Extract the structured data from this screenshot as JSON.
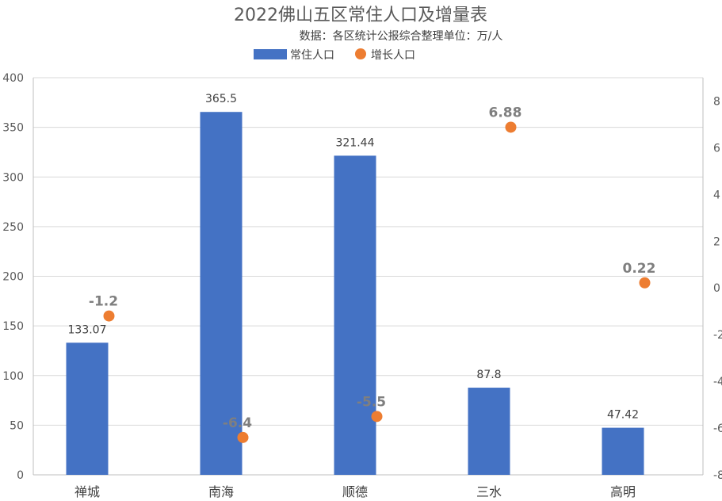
{
  "chart_data": {
    "type": "bar",
    "title": "2022佛山五区常住人口及增量表",
    "subtitle": "数据：各区统计公报综合整理单位：万/人",
    "categories": [
      "禅城",
      "南海",
      "顺德",
      "三水",
      "高明"
    ],
    "series": [
      {
        "name": "常住人口",
        "type": "bar",
        "axis": "left",
        "color": "#4472c4",
        "values": [
          133.07,
          365.5,
          321.44,
          87.8,
          47.42
        ],
        "labels": [
          "133.07",
          "365.5",
          "321.44",
          "87.8",
          "47.42"
        ]
      },
      {
        "name": "增长人口",
        "type": "scatter",
        "axis": "right",
        "color": "#ed7d31",
        "values": [
          -1.2,
          -6.4,
          -5.5,
          6.88,
          0.22
        ],
        "labels": [
          "-1.2",
          "-6.4",
          "-5.5",
          "6.88",
          "0.22"
        ]
      }
    ],
    "y_left": {
      "min": 0,
      "max": 400,
      "ticks": [
        "0",
        "50",
        "100",
        "150",
        "200",
        "250",
        "300",
        "350",
        "400"
      ]
    },
    "y_right": {
      "min": -8,
      "max": 9,
      "ticks": [
        "-8",
        "-6",
        "-4",
        "-2",
        "0",
        "2",
        "4",
        "6",
        "8"
      ],
      "tick_values": [
        -8,
        -6,
        -4,
        -2,
        0,
        2,
        4,
        6,
        8
      ]
    },
    "grid": true,
    "legend": "top-center"
  }
}
